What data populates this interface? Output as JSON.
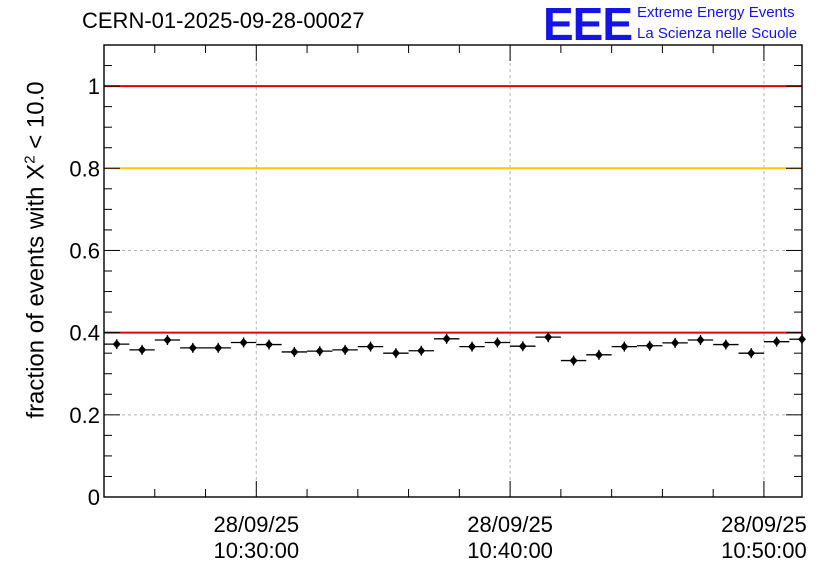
{
  "header": {
    "run_title": "CERN-01-2025-09-28-00027",
    "logo_text": "EEE",
    "logo_line1": "Extreme Energy Events",
    "logo_line2": "La Scienza nelle Scuole"
  },
  "chart_data": {
    "type": "scatter",
    "title": "CERN-01-2025-09-28-00027",
    "ylabel_main": "fraction of events with X",
    "ylabel_sup": "2",
    "ylabel_tail": " < 10.0",
    "xlabel": "",
    "ylim": [
      0,
      1.1
    ],
    "xlim_minutes": [
      24.0,
      51.5
    ],
    "y_ticks": [
      "0",
      "0.2",
      "0.4",
      "0.6",
      "0.8",
      "1"
    ],
    "y_tick_values": [
      0,
      0.2,
      0.4,
      0.6,
      0.8,
      1.0
    ],
    "x_ticks": [
      {
        "minute": 30,
        "date": "28/09/25",
        "time": "10:30:00"
      },
      {
        "minute": 40,
        "date": "28/09/25",
        "time": "10:40:00"
      },
      {
        "minute": 50,
        "date": "28/09/25",
        "time": "10:50:00"
      }
    ],
    "reference_lines": [
      {
        "y": 1.0,
        "color": "#e60000"
      },
      {
        "y": 0.8,
        "color": "#ffc800"
      },
      {
        "y": 0.4,
        "color": "#e60000"
      }
    ],
    "grid": true,
    "bin_width_minutes": 1.0,
    "series": [
      {
        "name": "fraction",
        "x_minutes": [
          24.5,
          25.5,
          26.5,
          27.5,
          28.5,
          29.5,
          30.5,
          31.5,
          32.5,
          33.5,
          34.5,
          35.5,
          36.5,
          37.5,
          38.5,
          39.5,
          40.5,
          41.5,
          42.5,
          43.5,
          44.5,
          45.5,
          46.5,
          47.5,
          48.5,
          49.5,
          50.5,
          51.5
        ],
        "values": [
          0.372,
          0.358,
          0.382,
          0.363,
          0.363,
          0.376,
          0.371,
          0.353,
          0.355,
          0.358,
          0.366,
          0.35,
          0.356,
          0.385,
          0.366,
          0.376,
          0.367,
          0.389,
          0.332,
          0.346,
          0.366,
          0.368,
          0.375,
          0.382,
          0.371,
          0.35,
          0.378,
          0.384
        ]
      }
    ]
  }
}
